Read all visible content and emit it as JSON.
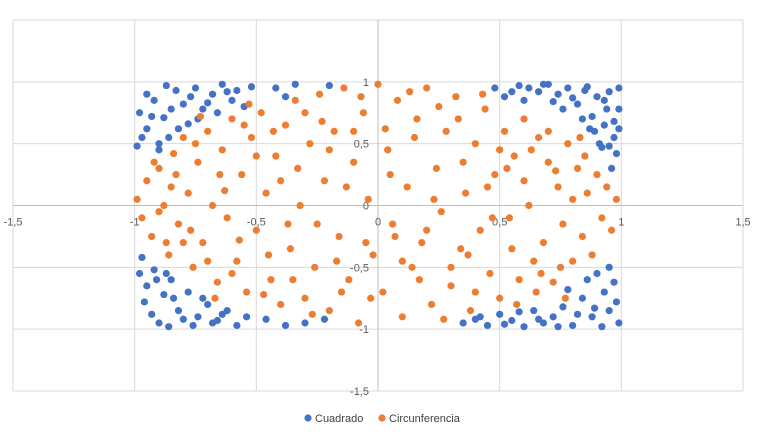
{
  "chart_data": {
    "type": "scatter",
    "title": "",
    "xlabel": "",
    "ylabel": "",
    "xlim": [
      -1.5,
      1.5
    ],
    "ylim": [
      -1.5,
      1.5
    ],
    "x_ticks": [
      "-1,5",
      "-1",
      "-0,5",
      "0",
      "0,5",
      "1",
      "1,5"
    ],
    "y_ticks": [
      "1",
      "0,5",
      "0",
      "-0,5",
      "-1",
      "-1,5"
    ],
    "grid": true,
    "legend_position": "bottom",
    "series": [
      {
        "name": "Cuadrado",
        "color": "#4472C4",
        "points": [
          [
            -0.98,
            0.75
          ],
          [
            -0.95,
            0.62
          ],
          [
            -0.92,
            0.85
          ],
          [
            -0.88,
            0.71
          ],
          [
            -0.83,
            0.93
          ],
          [
            -0.78,
            0.66
          ],
          [
            -0.9,
            0.45
          ],
          [
            -0.95,
            0.9
          ],
          [
            -0.86,
            0.55
          ],
          [
            -0.8,
            0.82
          ],
          [
            -0.75,
            0.95
          ],
          [
            -0.72,
            0.78
          ],
          [
            -0.68,
            0.9
          ],
          [
            -0.64,
            0.98
          ],
          [
            -0.6,
            0.85
          ],
          [
            -0.58,
            0.93
          ],
          [
            -0.55,
            0.8
          ],
          [
            -0.52,
            0.96
          ],
          [
            -0.97,
            0.55
          ],
          [
            -0.93,
            0.72
          ],
          [
            -0.9,
            0.5
          ],
          [
            -0.85,
            0.78
          ],
          [
            -0.82,
            0.62
          ],
          [
            -0.77,
            0.88
          ],
          [
            -0.74,
            0.7
          ],
          [
            -0.7,
            0.83
          ],
          [
            -0.66,
            0.75
          ],
          [
            -0.62,
            0.92
          ],
          [
            -0.99,
            0.48
          ],
          [
            -0.87,
            0.97
          ],
          [
            -0.42,
            0.95
          ],
          [
            -0.38,
            0.88
          ],
          [
            -0.34,
            0.98
          ],
          [
            -0.2,
            0.97
          ],
          [
            0.48,
            0.95
          ],
          [
            0.52,
            0.88
          ],
          [
            0.58,
            0.97
          ],
          [
            0.6,
            0.85
          ],
          [
            0.66,
            0.92
          ],
          [
            0.7,
            0.98
          ],
          [
            0.74,
            0.9
          ],
          [
            0.78,
            0.95
          ],
          [
            0.82,
            0.82
          ],
          [
            0.86,
            0.96
          ],
          [
            0.88,
            0.72
          ],
          [
            0.9,
            0.88
          ],
          [
            0.93,
            0.65
          ],
          [
            0.95,
            0.92
          ],
          [
            0.97,
            0.55
          ],
          [
            0.99,
            0.78
          ],
          [
            0.84,
            0.7
          ],
          [
            0.91,
            0.5
          ],
          [
            0.94,
            0.78
          ],
          [
            0.98,
            0.42
          ],
          [
            0.96,
            0.3
          ],
          [
            0.87,
            0.62
          ],
          [
            0.8,
            0.87
          ],
          [
            0.76,
            0.78
          ],
          [
            0.62,
            0.95
          ],
          [
            0.99,
            0.95
          ],
          [
            0.92,
            0.47
          ],
          [
            0.89,
            0.6
          ],
          [
            0.97,
            0.68
          ],
          [
            0.93,
            0.85
          ],
          [
            0.85,
            0.93
          ],
          [
            0.72,
            0.84
          ],
          [
            0.68,
            0.98
          ],
          [
            0.55,
            0.92
          ],
          [
            0.99,
            0.62
          ],
          [
            0.95,
            0.48
          ],
          [
            -0.98,
            -0.55
          ],
          [
            -0.95,
            -0.65
          ],
          [
            -0.92,
            -0.52
          ],
          [
            -0.88,
            -0.72
          ],
          [
            -0.85,
            -0.6
          ],
          [
            -0.82,
            -0.85
          ],
          [
            -0.78,
            -0.7
          ],
          [
            -0.74,
            -0.9
          ],
          [
            -0.7,
            -0.8
          ],
          [
            -0.66,
            -0.93
          ],
          [
            -0.62,
            -0.85
          ],
          [
            -0.58,
            -0.97
          ],
          [
            -0.54,
            -0.9
          ],
          [
            -0.96,
            -0.78
          ],
          [
            -0.93,
            -0.88
          ],
          [
            -0.9,
            -0.95
          ],
          [
            -0.86,
            -0.98
          ],
          [
            -0.8,
            -0.92
          ],
          [
            -0.76,
            -0.97
          ],
          [
            -0.72,
            -0.75
          ],
          [
            -0.97,
            -0.42
          ],
          [
            -0.91,
            -0.6
          ],
          [
            -0.87,
            -0.55
          ],
          [
            -0.84,
            -0.75
          ],
          [
            -0.68,
            -0.95
          ],
          [
            -0.64,
            -0.88
          ],
          [
            -0.46,
            -0.92
          ],
          [
            -0.38,
            -0.97
          ],
          [
            -0.3,
            -0.95
          ],
          [
            -0.22,
            -0.92
          ],
          [
            0.35,
            -0.95
          ],
          [
            0.4,
            -0.92
          ],
          [
            0.45,
            -0.97
          ],
          [
            0.5,
            -0.88
          ],
          [
            0.55,
            -0.93
          ],
          [
            0.6,
            -0.98
          ],
          [
            0.64,
            -0.85
          ],
          [
            0.68,
            -0.95
          ],
          [
            0.72,
            -0.9
          ],
          [
            0.76,
            -0.82
          ],
          [
            0.8,
            -0.97
          ],
          [
            0.84,
            -0.75
          ],
          [
            0.88,
            -0.9
          ],
          [
            0.9,
            -0.55
          ],
          [
            0.93,
            -0.7
          ],
          [
            0.95,
            -0.85
          ],
          [
            0.97,
            -0.62
          ],
          [
            0.99,
            -0.95
          ],
          [
            0.86,
            -0.6
          ],
          [
            0.82,
            -0.88
          ],
          [
            0.78,
            -0.68
          ],
          [
            0.74,
            -0.98
          ],
          [
            0.66,
            -0.92
          ],
          [
            0.58,
            -0.86
          ],
          [
            0.52,
            -0.96
          ],
          [
            0.92,
            -0.98
          ],
          [
            0.98,
            -0.78
          ],
          [
            0.89,
            -0.83
          ],
          [
            0.95,
            -0.5
          ],
          [
            0.42,
            -0.9
          ]
        ]
      },
      {
        "name": "Circunferencia",
        "color": "#ED7D31",
        "points": [
          [
            -0.99,
            0.05
          ],
          [
            -0.97,
            -0.1
          ],
          [
            -0.95,
            0.2
          ],
          [
            -0.93,
            -0.25
          ],
          [
            -0.9,
            0.3
          ],
          [
            -0.88,
            0.0
          ],
          [
            -0.86,
            -0.4
          ],
          [
            -0.84,
            0.42
          ],
          [
            -0.82,
            -0.15
          ],
          [
            -0.8,
            0.55
          ],
          [
            -0.78,
            0.1
          ],
          [
            -0.76,
            -0.5
          ],
          [
            -0.74,
            0.35
          ],
          [
            -0.72,
            -0.3
          ],
          [
            -0.7,
            0.6
          ],
          [
            -0.68,
            0.0
          ],
          [
            -0.66,
            -0.62
          ],
          [
            -0.64,
            0.45
          ],
          [
            -0.62,
            -0.1
          ],
          [
            -0.6,
            0.7
          ],
          [
            -0.58,
            -0.45
          ],
          [
            -0.56,
            0.25
          ],
          [
            -0.54,
            -0.7
          ],
          [
            -0.52,
            0.55
          ],
          [
            -0.5,
            -0.2
          ],
          [
            -0.48,
            0.75
          ],
          [
            -0.46,
            0.1
          ],
          [
            -0.44,
            -0.6
          ],
          [
            -0.42,
            0.4
          ],
          [
            -0.4,
            -0.8
          ],
          [
            -0.38,
            0.65
          ],
          [
            -0.36,
            -0.35
          ],
          [
            -0.34,
            0.85
          ],
          [
            -0.32,
            0.0
          ],
          [
            -0.3,
            -0.75
          ],
          [
            -0.28,
            0.5
          ],
          [
            -0.26,
            -0.5
          ],
          [
            -0.24,
            0.9
          ],
          [
            -0.22,
            0.2
          ],
          [
            -0.2,
            -0.85
          ],
          [
            -0.18,
            0.6
          ],
          [
            -0.16,
            -0.25
          ],
          [
            -0.14,
            0.95
          ],
          [
            -0.12,
            -0.6
          ],
          [
            -0.1,
            0.35
          ],
          [
            -0.08,
            -0.95
          ],
          [
            -0.06,
            0.75
          ],
          [
            -0.04,
            0.05
          ],
          [
            -0.02,
            -0.4
          ],
          [
            0.0,
            0.98
          ],
          [
            0.02,
            -0.7
          ],
          [
            0.04,
            0.45
          ],
          [
            0.06,
            -0.15
          ],
          [
            0.08,
            0.85
          ],
          [
            0.1,
            -0.9
          ],
          [
            0.12,
            0.15
          ],
          [
            0.14,
            -0.5
          ],
          [
            0.16,
            0.7
          ],
          [
            0.18,
            -0.3
          ],
          [
            0.2,
            0.95
          ],
          [
            0.22,
            -0.8
          ],
          [
            0.24,
            0.3
          ],
          [
            0.26,
            -0.05
          ],
          [
            0.28,
            0.6
          ],
          [
            0.3,
            -0.65
          ],
          [
            0.32,
            0.88
          ],
          [
            0.34,
            -0.35
          ],
          [
            0.36,
            0.1
          ],
          [
            0.38,
            -0.85
          ],
          [
            0.4,
            0.5
          ],
          [
            0.42,
            -0.2
          ],
          [
            0.44,
            0.78
          ],
          [
            0.46,
            -0.55
          ],
          [
            0.48,
            0.25
          ],
          [
            0.5,
            -0.75
          ],
          [
            0.52,
            0.6
          ],
          [
            0.54,
            -0.1
          ],
          [
            0.56,
            0.4
          ],
          [
            0.58,
            -0.6
          ],
          [
            0.6,
            0.7
          ],
          [
            0.62,
            0.0
          ],
          [
            0.64,
            -0.45
          ],
          [
            0.66,
            0.55
          ],
          [
            0.68,
            -0.3
          ],
          [
            0.7,
            0.35
          ],
          [
            0.72,
            -0.62
          ],
          [
            0.74,
            0.15
          ],
          [
            0.76,
            -0.15
          ],
          [
            0.78,
            0.5
          ],
          [
            0.8,
            -0.45
          ],
          [
            0.82,
            0.3
          ],
          [
            0.84,
            -0.25
          ],
          [
            0.86,
            0.1
          ],
          [
            0.88,
            -0.4
          ],
          [
            0.9,
            0.25
          ],
          [
            0.92,
            -0.1
          ],
          [
            0.94,
            0.15
          ],
          [
            0.96,
            -0.2
          ],
          [
            0.98,
            0.05
          ],
          [
            0.85,
            0.4
          ],
          [
            -0.9,
            -0.05
          ],
          [
            -0.85,
            0.15
          ],
          [
            -0.8,
            -0.3
          ],
          [
            -0.75,
            0.5
          ],
          [
            -0.7,
            -0.45
          ],
          [
            -0.65,
            0.25
          ],
          [
            -0.6,
            -0.55
          ],
          [
            -0.55,
            0.65
          ],
          [
            -0.5,
            0.4
          ],
          [
            -0.45,
            -0.4
          ],
          [
            -0.4,
            0.2
          ],
          [
            -0.35,
            -0.6
          ],
          [
            -0.3,
            0.75
          ],
          [
            -0.25,
            -0.15
          ],
          [
            -0.2,
            0.45
          ],
          [
            -0.15,
            -0.7
          ],
          [
            -0.1,
            0.6
          ],
          [
            -0.05,
            -0.3
          ],
          [
            0.05,
            0.25
          ],
          [
            0.1,
            -0.45
          ],
          [
            0.15,
            0.55
          ],
          [
            0.2,
            -0.2
          ],
          [
            0.25,
            0.8
          ],
          [
            0.3,
            -0.5
          ],
          [
            0.35,
            0.35
          ],
          [
            0.4,
            -0.7
          ],
          [
            0.45,
            0.15
          ],
          [
            0.5,
            0.45
          ],
          [
            0.55,
            -0.35
          ],
          [
            0.6,
            0.2
          ],
          [
            0.65,
            -0.7
          ],
          [
            0.7,
            0.6
          ],
          [
            0.75,
            -0.5
          ],
          [
            0.8,
            0.05
          ],
          [
            -0.92,
            0.35
          ],
          [
            -0.87,
            -0.3
          ],
          [
            -0.83,
            0.25
          ],
          [
            -0.77,
            -0.2
          ],
          [
            -0.73,
            0.72
          ],
          [
            -0.67,
            -0.75
          ],
          [
            -0.63,
            0.12
          ],
          [
            -0.57,
            -0.28
          ],
          [
            -0.53,
            0.82
          ],
          [
            -0.47,
            -0.72
          ],
          [
            -0.43,
            0.6
          ],
          [
            -0.37,
            -0.15
          ],
          [
            -0.33,
            0.3
          ],
          [
            -0.27,
            -0.88
          ],
          [
            -0.23,
            0.68
          ],
          [
            -0.17,
            -0.45
          ],
          [
            -0.13,
            0.15
          ],
          [
            -0.07,
            0.88
          ],
          [
            -0.03,
            -0.75
          ],
          [
            0.03,
            0.62
          ],
          [
            0.07,
            -0.25
          ],
          [
            0.13,
            0.92
          ],
          [
            0.17,
            -0.6
          ],
          [
            0.23,
            0.05
          ],
          [
            0.27,
            -0.92
          ],
          [
            0.33,
            0.7
          ],
          [
            0.37,
            -0.4
          ],
          [
            0.43,
            0.9
          ],
          [
            0.47,
            -0.1
          ],
          [
            0.53,
            0.3
          ],
          [
            0.57,
            -0.8
          ],
          [
            0.63,
            0.45
          ],
          [
            0.67,
            -0.55
          ],
          [
            0.73,
            0.28
          ],
          [
            0.77,
            -0.75
          ],
          [
            0.83,
            0.55
          ]
        ]
      }
    ]
  }
}
